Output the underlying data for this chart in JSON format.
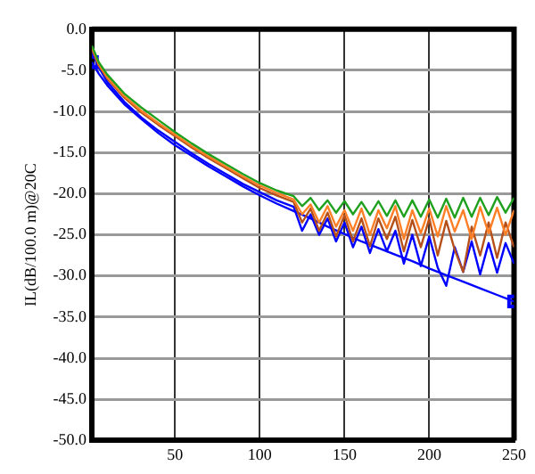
{
  "chart_data": {
    "type": "line",
    "ylabel": "IL(dB/100.0 m)@20C",
    "x": [
      1,
      5,
      10,
      20,
      30,
      40,
      50,
      60,
      70,
      80,
      90,
      100,
      110,
      120,
      125,
      130,
      135,
      140,
      145,
      150,
      155,
      160,
      165,
      170,
      175,
      180,
      185,
      190,
      195,
      200,
      205,
      210,
      215,
      220,
      225,
      230,
      235,
      240,
      245,
      250
    ],
    "series": [
      {
        "color": "#1fa01f",
        "values": [
          -2,
          -4,
          -5.5,
          -7.8,
          -9.5,
          -11,
          -12.5,
          -13.9,
          -15.2,
          -16.4,
          -17.6,
          -18.7,
          -19.6,
          -20.3,
          -21.5,
          -20.5,
          -22,
          -20.8,
          -22.3,
          -20.9,
          -22.5,
          -21,
          -22.6,
          -20.9,
          -22.7,
          -20.8,
          -22.8,
          -20.8,
          -22.8,
          -20.7,
          -22.9,
          -20.6,
          -22.9,
          -20.5,
          -22.8,
          -20.5,
          -22.6,
          -20.4,
          -22.3,
          -20.5
        ]
      },
      {
        "color": "#ff7f27",
        "values": [
          -2.2,
          -4.2,
          -5.8,
          -8.1,
          -9.9,
          -11.4,
          -12.8,
          -14.2,
          -15.5,
          -16.7,
          -17.9,
          -19,
          -19.9,
          -20.7,
          -22.5,
          -21.3,
          -23.5,
          -21.5,
          -24,
          -22,
          -24.5,
          -21.8,
          -25,
          -22,
          -24.2,
          -21.5,
          -25.5,
          -22,
          -24.8,
          -21.8,
          -25.2,
          -21.5,
          -24.6,
          -22,
          -25.5,
          -21.6,
          -24.8,
          -21.7,
          -25,
          -22
        ]
      },
      {
        "color": "#b5501a",
        "values": [
          -2.4,
          -4.4,
          -6,
          -8.3,
          -10.1,
          -11.6,
          -13,
          -14.4,
          -15.7,
          -16.9,
          -18.1,
          -19.3,
          -20.2,
          -21,
          -23.5,
          -21.8,
          -24.5,
          -22.3,
          -25.2,
          -22.6,
          -25.8,
          -23,
          -26.4,
          -23,
          -25.5,
          -22.8,
          -27,
          -23.2,
          -26.5,
          -23,
          -27.5,
          -23.3,
          -26.8,
          -29.5,
          -24,
          -27.5,
          -23.5,
          -27.8,
          -23.5,
          -26.5
        ]
      },
      {
        "color": "#0000ff",
        "values": [
          -2.8,
          -4.6,
          -6.4,
          -8.8,
          -10.7,
          -12.3,
          -13.7,
          -15.1,
          -16.4,
          -17.6,
          -18.8,
          -19.8,
          -20.8,
          -21.6,
          -24.5,
          -22.5,
          -25,
          -23,
          -25.8,
          -23.5,
          -26.5,
          -24,
          -27.2,
          -24.3,
          -27,
          -24.5,
          -28.5,
          -25,
          -28.8,
          -25.2,
          -29,
          -31.2,
          -26.5,
          -29.5,
          -25.8,
          -29.8,
          -26,
          -29.6,
          -26,
          -28.5
        ]
      },
      {
        "color": "#0000ff",
        "x": [
          1,
          5,
          10,
          20,
          30,
          40,
          50,
          60,
          70,
          80,
          90,
          100,
          110,
          120,
          130,
          140,
          150,
          160,
          170,
          180,
          190,
          200,
          210,
          220,
          230,
          240,
          250
        ],
        "values": [
          -4,
          -5.4,
          -6.8,
          -9.1,
          -10.9,
          -12.6,
          -14.1,
          -15.4,
          -16.7,
          -17.9,
          -19.1,
          -20.2,
          -21.2,
          -22.1,
          -23,
          -24,
          -24.9,
          -25.8,
          -26.6,
          -27.4,
          -28.2,
          -29.1,
          -29.9,
          -30.7,
          -31.5,
          -32.3,
          -33.1
        ]
      },
      {
        "type": "scatter",
        "marker": "square",
        "color": "#0000ff",
        "x": [
          1,
          250
        ],
        "values": [
          -4,
          -33.1
        ]
      }
    ],
    "xlim": [
      1,
      250
    ],
    "xticks": [
      50,
      100,
      150,
      200,
      250
    ],
    "ylim": [
      -50,
      0
    ],
    "yticks": [
      {
        "value": 0,
        "label": "0.0"
      },
      {
        "value": -5,
        "label": "-5.0"
      },
      {
        "value": -10,
        "label": "-10.0"
      },
      {
        "value": -15,
        "label": "-15.0"
      },
      {
        "value": -20,
        "label": "-20.0"
      },
      {
        "value": -25,
        "label": "-25.0"
      },
      {
        "value": -30,
        "label": "-30.0"
      },
      {
        "value": -35,
        "label": "-35.0"
      },
      {
        "value": -40,
        "label": "-40.0"
      },
      {
        "value": -45,
        "label": "-45.0"
      },
      {
        "value": -50,
        "label": "-50.0"
      }
    ],
    "grid": true,
    "legend": false,
    "marker": "none"
  }
}
